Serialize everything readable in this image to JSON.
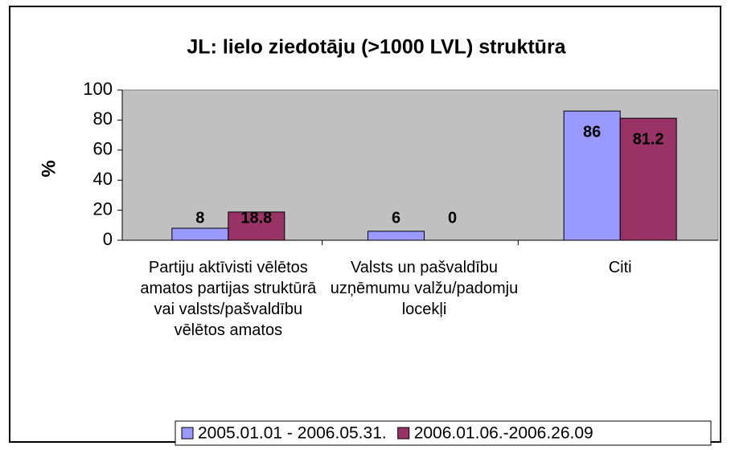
{
  "chart_data": {
    "type": "bar",
    "title": "JL: lielo ziedotāju (>1000 LVL) struktūra",
    "y_label": "%",
    "categories": [
      "Partiju aktīvisti vēlētos amatos partijas struktūrā vai valsts/pašvaldību vēlētos amatos",
      "Valsts un pašvaldību uzņēmumu valžu/padomju locekļi",
      "Citi"
    ],
    "series": [
      {
        "name": "2005.01.01 - 2006.05.31.",
        "color": "#9999ff",
        "values": [
          8,
          6,
          86
        ]
      },
      {
        "name": "2006.01.06.-2006.26.09",
        "color": "#993366",
        "values": [
          18.8,
          0,
          81.2
        ]
      }
    ],
    "ylim": [
      0,
      100
    ],
    "yticks": [
      0,
      20,
      40,
      60,
      80,
      100
    ],
    "grid": false,
    "legend": "bottom"
  }
}
